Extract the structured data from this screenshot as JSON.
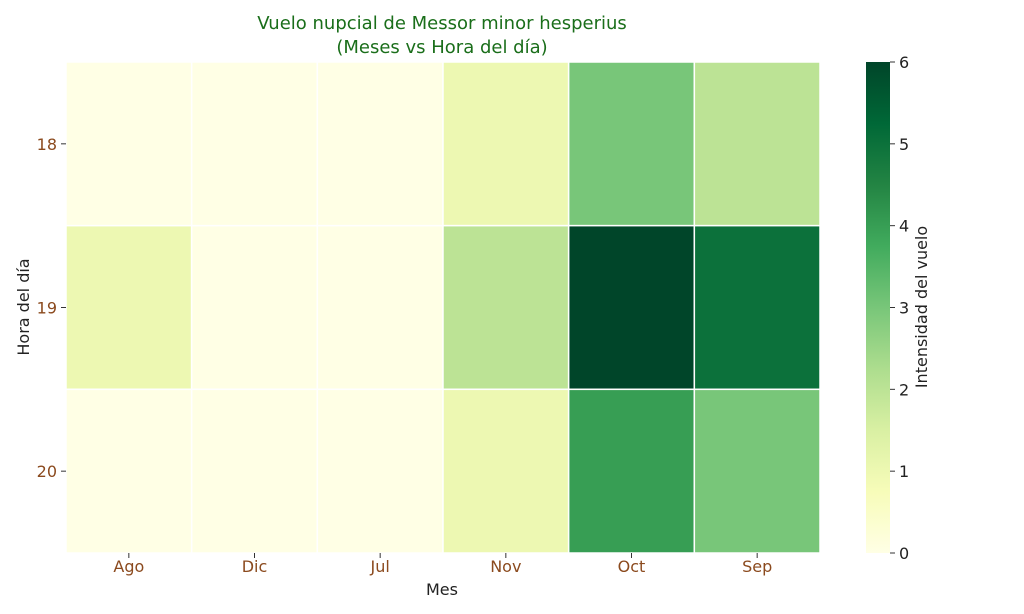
{
  "chart_data": {
    "type": "heatmap",
    "title": "Vuelo nupcial de Messor minor hesperius",
    "subtitle": "(Meses vs Hora del día)",
    "xlabel": "Mes",
    "ylabel": "Hora del día",
    "x_categories": [
      "Ago",
      "Dic",
      "Jul",
      "Nov",
      "Oct",
      "Sep"
    ],
    "y_categories": [
      "18",
      "19",
      "20"
    ],
    "values": [
      [
        0,
        0,
        0,
        1,
        3,
        2
      ],
      [
        1,
        0,
        0,
        2,
        6,
        5
      ],
      [
        0,
        0,
        0,
        1,
        4,
        3
      ]
    ],
    "colorbar": {
      "label": "Intensidad del vuelo",
      "range": [
        0,
        6
      ],
      "ticks": [
        "0",
        "1",
        "2",
        "3",
        "4",
        "5",
        "6"
      ],
      "colormap": "YlGn"
    },
    "colors": {
      "title": "#1a6e1a",
      "tick_labels": "#8b4a1e",
      "cell_border": "#ffffff"
    }
  }
}
